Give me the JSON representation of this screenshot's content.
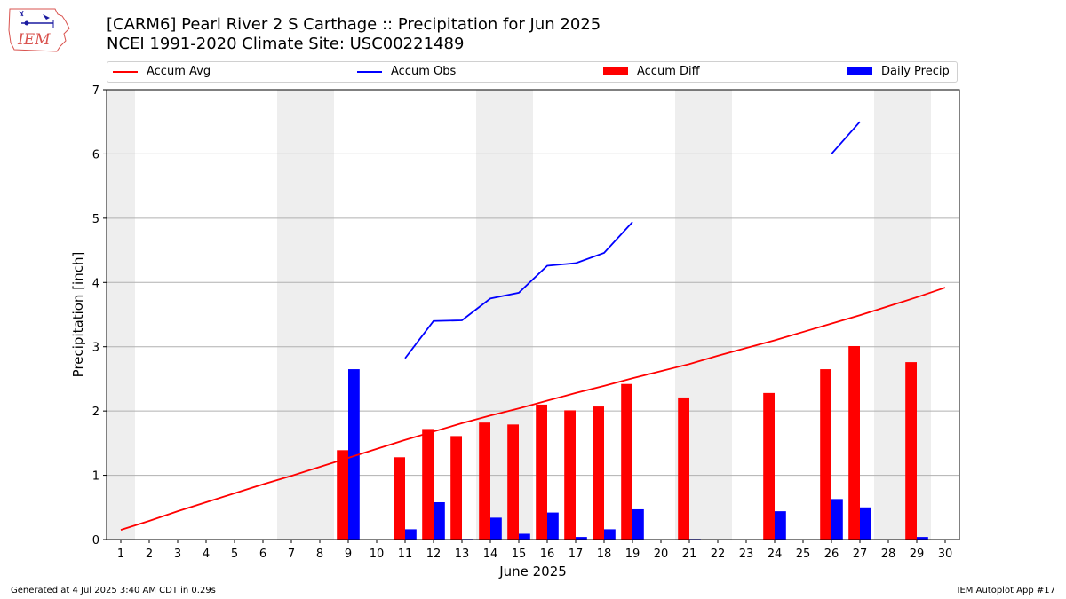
{
  "header": {
    "title_line1": "[CARM6] Pearl River 2 S Carthage :: Precipitation for Jun 2025",
    "title_line2": "NCEI 1991-2020 Climate Site: USC00221489",
    "logo_text": "IEM"
  },
  "legend": {
    "items": [
      {
        "label": "Accum Avg",
        "color": "#ff0000",
        "kind": "line"
      },
      {
        "label": "Accum Obs",
        "color": "#0000ff",
        "kind": "line"
      },
      {
        "label": "Accum Diff",
        "color": "#ff0000",
        "kind": "box"
      },
      {
        "label": "Daily Precip",
        "color": "#0000ff",
        "kind": "box"
      }
    ]
  },
  "footer": {
    "generated": "Generated at 4 Jul 2025 3:40 AM CDT in 0.29s",
    "app": "IEM Autoplot App #17"
  },
  "chart_data": {
    "type": "bar",
    "xlabel": "June 2025",
    "ylabel": "Precipitation [inch]",
    "ylim": [
      0,
      7
    ],
    "yticks": [
      0,
      1,
      2,
      3,
      4,
      5,
      6,
      7
    ],
    "grid": "horizontal",
    "legend_position": "top",
    "weekend_shading_color": "#eeeeee",
    "weekend_days": [
      1,
      7,
      8,
      14,
      15,
      21,
      22,
      28,
      29
    ],
    "days": [
      1,
      2,
      3,
      4,
      5,
      6,
      7,
      8,
      9,
      10,
      11,
      12,
      13,
      14,
      15,
      16,
      17,
      18,
      19,
      20,
      21,
      22,
      23,
      24,
      25,
      26,
      27,
      28,
      29,
      30
    ],
    "series": [
      {
        "name": "Accum Avg",
        "type": "line",
        "color": "#ff0000",
        "values": [
          0.15,
          0.29,
          0.44,
          0.58,
          0.72,
          0.86,
          0.99,
          1.13,
          1.27,
          1.41,
          1.55,
          1.68,
          1.81,
          1.93,
          2.04,
          2.16,
          2.28,
          2.39,
          2.51,
          2.62,
          2.73,
          2.86,
          2.98,
          3.1,
          3.23,
          3.36,
          3.49,
          3.63,
          3.77,
          3.92
        ]
      },
      {
        "name": "Accum Obs",
        "type": "line",
        "color": "#0000ff",
        "values": [
          null,
          null,
          null,
          null,
          null,
          null,
          null,
          null,
          null,
          null,
          2.82,
          3.4,
          3.41,
          3.75,
          3.84,
          4.26,
          4.3,
          4.46,
          4.94,
          null,
          null,
          null,
          null,
          null,
          null,
          6.0,
          6.5,
          null,
          null,
          null
        ]
      },
      {
        "name": "Accum Diff",
        "type": "bar",
        "color": "#ff0000",
        "values": [
          0,
          0,
          0,
          0,
          0,
          0,
          0,
          0,
          1.39,
          0,
          1.28,
          1.72,
          1.61,
          1.82,
          1.79,
          2.1,
          2.01,
          2.07,
          2.42,
          0,
          2.21,
          0,
          0,
          2.28,
          0,
          2.65,
          3.01,
          0,
          2.76,
          0
        ]
      },
      {
        "name": "Daily Precip",
        "type": "bar",
        "color": "#0000ff",
        "values": [
          0,
          0,
          0,
          0,
          0,
          0,
          0,
          0,
          2.65,
          0,
          0.16,
          0.58,
          0.01,
          0.34,
          0.09,
          0.42,
          0.04,
          0.16,
          0.47,
          0,
          0.01,
          0,
          0,
          0.44,
          0,
          0.63,
          0.5,
          0,
          0.04,
          0
        ]
      }
    ]
  }
}
